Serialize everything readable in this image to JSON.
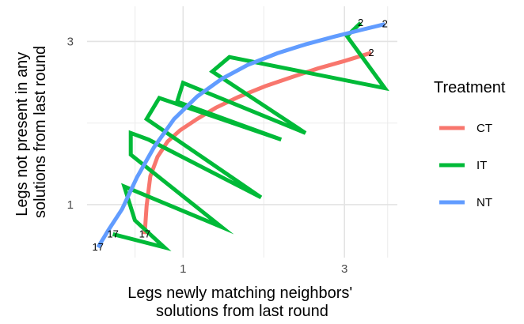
{
  "chart_data": {
    "type": "line",
    "x_scale": "log",
    "y_scale": "log",
    "xlabel": [
      "Legs newly matching neighbors'",
      "solutions from last round"
    ],
    "ylabel": [
      "Legs not present in any",
      "solutions from last round"
    ],
    "x_ticks": [
      1,
      3
    ],
    "y_ticks": [
      1,
      3
    ],
    "xlim": [
      0.52,
      4.3
    ],
    "ylim": [
      0.7,
      3.8
    ],
    "grid": true,
    "legend": {
      "title": "Treatment",
      "position": "right"
    },
    "series": [
      {
        "name": "CT",
        "color": "#F8766D",
        "x": [
          0.77,
          0.78,
          0.8,
          0.84,
          0.9,
          0.98,
          1.1,
          1.25,
          1.45,
          1.75,
          2.1,
          2.5,
          3.0,
          3.6
        ],
        "y": [
          0.82,
          0.99,
          1.21,
          1.38,
          1.53,
          1.65,
          1.78,
          1.92,
          2.06,
          2.22,
          2.36,
          2.5,
          2.63,
          2.78
        ],
        "labels": [
          {
            "x": 0.77,
            "y": 0.82,
            "text": "17"
          },
          {
            "x": 3.6,
            "y": 2.78,
            "text": "2"
          }
        ]
      },
      {
        "name": "IT",
        "color": "#00BA38",
        "x": [
          0.62,
          0.88,
          0.72,
          0.67,
          1.3,
          0.7,
          0.7,
          0.79,
          1.7,
          0.78,
          0.85,
          1.95,
          0.96,
          1.0,
          2.3,
          1.22,
          1.37,
          3.95,
          3.05,
          3.35
        ],
        "y": [
          0.82,
          0.75,
          0.9,
          1.13,
          0.86,
          1.4,
          1.62,
          1.55,
          1.05,
          1.78,
          2.05,
          1.55,
          2.0,
          2.27,
          1.62,
          2.45,
          2.7,
          2.19,
          3.11,
          3.4
        ],
        "labels": [
          {
            "x": 0.62,
            "y": 0.82,
            "text": "17"
          },
          {
            "x": 3.35,
            "y": 3.4,
            "text": "2"
          }
        ]
      },
      {
        "name": "NT",
        "color": "#619CFF",
        "x": [
          0.56,
          0.6,
          0.66,
          0.73,
          0.82,
          0.94,
          1.1,
          1.3,
          1.55,
          1.9,
          2.3,
          2.8,
          3.35,
          3.95
        ],
        "y": [
          0.75,
          0.84,
          0.97,
          1.2,
          1.47,
          1.78,
          2.07,
          2.33,
          2.56,
          2.77,
          2.94,
          3.1,
          3.24,
          3.37
        ],
        "labels": [
          {
            "x": 0.56,
            "y": 0.75,
            "text": "17"
          },
          {
            "x": 3.95,
            "y": 3.37,
            "text": "2"
          }
        ]
      }
    ]
  }
}
